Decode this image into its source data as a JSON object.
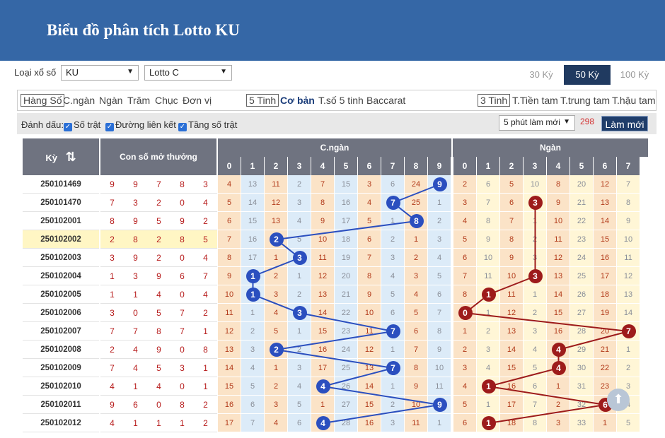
{
  "header": {
    "title": "Biểu đồ phân tích Lotto KU"
  },
  "filters": {
    "type_label": "Loại xổ số",
    "type_value": "KU",
    "game_value": "Lotto C",
    "periods": [
      {
        "label": "30 Kỳ",
        "active": false
      },
      {
        "label": "50 Kỳ",
        "active": true
      },
      {
        "label": "100 Kỳ",
        "active": false
      }
    ]
  },
  "tabs": {
    "positions": [
      "Hàng Số",
      "C.ngàn",
      "Ngàn",
      "Trăm",
      "Chục",
      "Đơn vị"
    ],
    "modes": [
      "5 Tinh",
      "Cơ bản",
      "T.số 5 tinh",
      "Baccarat"
    ],
    "modes3": [
      "3 Tinh",
      "T.Tiền tam",
      "T.trung tam",
      "T.hậu tam"
    ]
  },
  "marks": {
    "label": "Đánh dấu:",
    "options": [
      "Số trật",
      "Đường liên kết",
      "Tầng số trật"
    ],
    "refresh_select": "5 phút làm mới",
    "countdown": "298",
    "refresh_button": "Làm mới"
  },
  "table": {
    "col_ky": "Kỳ",
    "col_numbers": "Con số mở thưởng",
    "group1": "C.ngàn",
    "group2": "Ngàn",
    "digits": [
      "0",
      "1",
      "2",
      "3",
      "4",
      "5",
      "6",
      "7",
      "8",
      "9"
    ],
    "rows": [
      {
        "ky": "250101469",
        "nums": [
          "9",
          "9",
          "7",
          "8",
          "3"
        ],
        "g1": [
          "4",
          "13",
          "11",
          "2",
          "7",
          "15",
          "3",
          "6",
          "24",
          "9"
        ],
        "g2": [
          "2",
          "6",
          "5",
          "10",
          "8",
          "20",
          "12",
          "7"
        ],
        "b1": 9,
        "b2": null
      },
      {
        "ky": "250101470",
        "nums": [
          "7",
          "3",
          "2",
          "0",
          "4"
        ],
        "g1": [
          "5",
          "14",
          "12",
          "3",
          "8",
          "16",
          "4",
          "7",
          "25",
          "1"
        ],
        "g2": [
          "3",
          "7",
          "6",
          "3",
          "9",
          "21",
          "13",
          "8"
        ],
        "b1": 7,
        "b2": 3
      },
      {
        "ky": "250102001",
        "nums": [
          "8",
          "9",
          "5",
          "9",
          "2"
        ],
        "g1": [
          "6",
          "15",
          "13",
          "4",
          "9",
          "17",
          "5",
          "1",
          "8",
          "2"
        ],
        "g2": [
          "4",
          "8",
          "7",
          "1",
          "10",
          "22",
          "14",
          "9"
        ],
        "b1": 8,
        "b2": null
      },
      {
        "ky": "250102002",
        "nums": [
          "2",
          "8",
          "2",
          "8",
          "5"
        ],
        "g1": [
          "7",
          "16",
          "2",
          "5",
          "10",
          "18",
          "6",
          "2",
          "1",
          "3"
        ],
        "g2": [
          "5",
          "9",
          "8",
          "2",
          "11",
          "23",
          "15",
          "10"
        ],
        "b1": 2,
        "b2": null
      },
      {
        "ky": "250102003",
        "nums": [
          "3",
          "9",
          "2",
          "0",
          "4"
        ],
        "g1": [
          "8",
          "17",
          "1",
          "3",
          "11",
          "19",
          "7",
          "3",
          "2",
          "4"
        ],
        "g2": [
          "6",
          "10",
          "9",
          "3",
          "12",
          "24",
          "16",
          "11"
        ],
        "b1": 3,
        "b2": null
      },
      {
        "ky": "250102004",
        "nums": [
          "1",
          "3",
          "9",
          "6",
          "7"
        ],
        "g1": [
          "9",
          "1",
          "2",
          "1",
          "12",
          "20",
          "8",
          "4",
          "3",
          "5"
        ],
        "g2": [
          "7",
          "11",
          "10",
          "3",
          "13",
          "25",
          "17",
          "12"
        ],
        "b1": 1,
        "b2": 3
      },
      {
        "ky": "250102005",
        "nums": [
          "1",
          "1",
          "4",
          "0",
          "4"
        ],
        "g1": [
          "10",
          "1",
          "3",
          "2",
          "13",
          "21",
          "9",
          "5",
          "4",
          "6"
        ],
        "g2": [
          "8",
          "1",
          "11",
          "1",
          "14",
          "26",
          "18",
          "13"
        ],
        "b1": 1,
        "b2": 1
      },
      {
        "ky": "250102006",
        "nums": [
          "3",
          "0",
          "5",
          "7",
          "2"
        ],
        "g1": [
          "11",
          "1",
          "4",
          "3",
          "14",
          "22",
          "10",
          "6",
          "5",
          "7"
        ],
        "g2": [
          "0",
          "1",
          "12",
          "2",
          "15",
          "27",
          "19",
          "14"
        ],
        "b1": 3,
        "b2": 0
      },
      {
        "ky": "250102007",
        "nums": [
          "7",
          "7",
          "8",
          "7",
          "1"
        ],
        "g1": [
          "12",
          "2",
          "5",
          "1",
          "15",
          "23",
          "11",
          "7",
          "6",
          "8"
        ],
        "g2": [
          "1",
          "2",
          "13",
          "3",
          "16",
          "28",
          "20",
          "7"
        ],
        "b1": 7,
        "b2": 7
      },
      {
        "ky": "250102008",
        "nums": [
          "2",
          "4",
          "9",
          "0",
          "8"
        ],
        "g1": [
          "13",
          "3",
          "2",
          "2",
          "16",
          "24",
          "12",
          "1",
          "7",
          "9"
        ],
        "g2": [
          "2",
          "3",
          "14",
          "4",
          "4",
          "29",
          "21",
          "1"
        ],
        "b1": 2,
        "b2": 4
      },
      {
        "ky": "250102009",
        "nums": [
          "7",
          "4",
          "5",
          "3",
          "1"
        ],
        "g1": [
          "14",
          "4",
          "1",
          "3",
          "17",
          "25",
          "13",
          "7",
          "8",
          "10"
        ],
        "g2": [
          "3",
          "4",
          "15",
          "5",
          "4",
          "30",
          "22",
          "2"
        ],
        "b1": 7,
        "b2": 4
      },
      {
        "ky": "250102010",
        "nums": [
          "4",
          "1",
          "4",
          "0",
          "1"
        ],
        "g1": [
          "15",
          "5",
          "2",
          "4",
          "4",
          "26",
          "14",
          "1",
          "9",
          "11"
        ],
        "g2": [
          "4",
          "1",
          "16",
          "6",
          "1",
          "31",
          "23",
          "3"
        ],
        "b1": 4,
        "b2": 1
      },
      {
        "ky": "250102011",
        "nums": [
          "9",
          "6",
          "0",
          "8",
          "2"
        ],
        "g1": [
          "16",
          "6",
          "3",
          "5",
          "1",
          "27",
          "15",
          "2",
          "10",
          "9"
        ],
        "g2": [
          "5",
          "1",
          "17",
          "7",
          "2",
          "32",
          "6",
          "4"
        ],
        "b1": 9,
        "b2": 6
      },
      {
        "ky": "250102012",
        "nums": [
          "4",
          "1",
          "1",
          "1",
          "2"
        ],
        "g1": [
          "17",
          "7",
          "4",
          "6",
          "4",
          "28",
          "16",
          "3",
          "11",
          "1"
        ],
        "g2": [
          "6",
          "1",
          "18",
          "8",
          "3",
          "33",
          "1",
          "5"
        ],
        "b1": 4,
        "b2": 1
      }
    ]
  },
  "colors": {
    "header": "#3567a6",
    "blue_ball": "#2b4fbf",
    "red_ball": "#9d1b1b",
    "table_head": "#6f7380"
  }
}
